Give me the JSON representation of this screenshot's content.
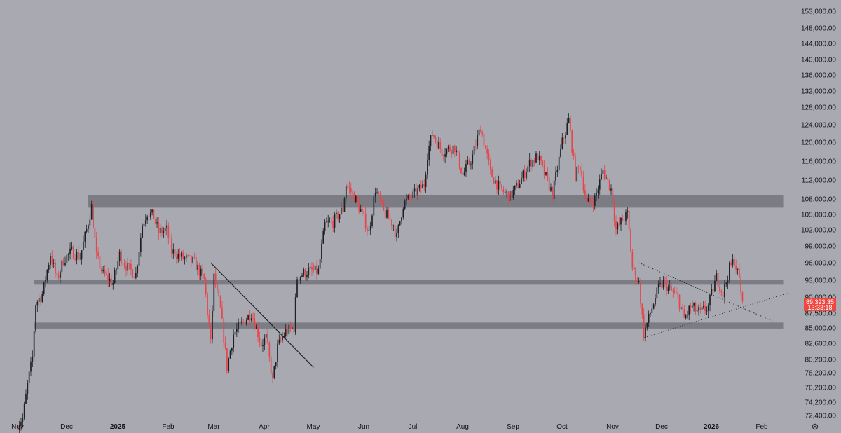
{
  "chart_data": {
    "type": "candlestick",
    "title": "",
    "xlabel": "",
    "ylabel": "",
    "x_range": [
      "2024-11-01",
      "2026-02-15"
    ],
    "y_ticks": [
      72400,
      74200,
      76200,
      78200,
      80200,
      82600,
      85000,
      87500,
      90000,
      93000,
      96000,
      99000,
      102000,
      105000,
      108000,
      112000,
      116000,
      120000,
      124000,
      128000,
      132000,
      136000,
      140000,
      144000,
      148000,
      153000
    ],
    "y_tick_labels": [
      "72,400.00",
      "74,200.00",
      "76,200.00",
      "78,200.00",
      "80,200.00",
      "82,600.00",
      "85,000.00",
      "87,500.00",
      "90,000.00",
      "93,000.00",
      "96,000.00",
      "99,000.00",
      "102,000.00",
      "105,000.00",
      "108,000.00",
      "112,000.00",
      "116,000.00",
      "120,000.00",
      "124,000.00",
      "128,000.00",
      "132,000.00",
      "136,000.00",
      "140,000.00",
      "144,000.00",
      "148,000.00",
      "153,000.00"
    ],
    "x_tick_labels": [
      {
        "date": "2024-11-01",
        "label": "Nov",
        "bold": false
      },
      {
        "date": "2024-12-01",
        "label": "Dec",
        "bold": false
      },
      {
        "date": "2025-01-01",
        "label": "2025",
        "bold": true
      },
      {
        "date": "2025-02-01",
        "label": "Feb",
        "bold": false
      },
      {
        "date": "2025-03-01",
        "label": "Mar",
        "bold": false
      },
      {
        "date": "2025-04-01",
        "label": "Apr",
        "bold": false
      },
      {
        "date": "2025-05-01",
        "label": "May",
        "bold": false
      },
      {
        "date": "2025-06-01",
        "label": "Jun",
        "bold": false
      },
      {
        "date": "2025-07-01",
        "label": "Jul",
        "bold": false
      },
      {
        "date": "2025-08-01",
        "label": "Aug",
        "bold": false
      },
      {
        "date": "2025-09-01",
        "label": "Sep",
        "bold": false
      },
      {
        "date": "2025-10-01",
        "label": "Oct",
        "bold": false
      },
      {
        "date": "2025-11-01",
        "label": "Nov",
        "bold": false
      },
      {
        "date": "2025-12-01",
        "label": "Dec",
        "bold": false
      },
      {
        "date": "2026-01-01",
        "label": "2026",
        "bold": true
      },
      {
        "date": "2026-02-01",
        "label": "Feb",
        "bold": false
      }
    ],
    "price_path": [
      {
        "date": "2024-11-01",
        "close": 71000
      },
      {
        "date": "2024-11-05",
        "close": 72000
      },
      {
        "date": "2024-11-08",
        "close": 76500
      },
      {
        "date": "2024-11-11",
        "close": 80500
      },
      {
        "date": "2024-11-13",
        "close": 89000
      },
      {
        "date": "2024-11-17",
        "close": 90500
      },
      {
        "date": "2024-11-22",
        "close": 97500
      },
      {
        "date": "2024-11-26",
        "close": 93000
      },
      {
        "date": "2024-11-30",
        "close": 96500
      },
      {
        "date": "2024-12-05",
        "close": 98000
      },
      {
        "date": "2024-12-10",
        "close": 97000
      },
      {
        "date": "2024-12-14",
        "close": 102000
      },
      {
        "date": "2024-12-17",
        "close": 106500
      },
      {
        "date": "2024-12-20",
        "close": 97000
      },
      {
        "date": "2024-12-24",
        "close": 94000
      },
      {
        "date": "2024-12-30",
        "close": 92500
      },
      {
        "date": "2025-01-03",
        "close": 97500
      },
      {
        "date": "2025-01-08",
        "close": 95000
      },
      {
        "date": "2025-01-13",
        "close": 94000
      },
      {
        "date": "2025-01-17",
        "close": 103000
      },
      {
        "date": "2025-01-20",
        "close": 105500
      },
      {
        "date": "2025-01-24",
        "close": 104500
      },
      {
        "date": "2025-01-27",
        "close": 101500
      },
      {
        "date": "2025-02-01",
        "close": 102000
      },
      {
        "date": "2025-02-04",
        "close": 98000
      },
      {
        "date": "2025-02-10",
        "close": 97000
      },
      {
        "date": "2025-02-18",
        "close": 96000
      },
      {
        "date": "2025-02-24",
        "close": 93000
      },
      {
        "date": "2025-02-28",
        "close": 82500
      },
      {
        "date": "2025-03-02",
        "close": 93500
      },
      {
        "date": "2025-03-06",
        "close": 88000
      },
      {
        "date": "2025-03-10",
        "close": 79000
      },
      {
        "date": "2025-03-14",
        "close": 84000
      },
      {
        "date": "2025-03-20",
        "close": 86000
      },
      {
        "date": "2025-03-25",
        "close": 87500
      },
      {
        "date": "2025-03-31",
        "close": 82500
      },
      {
        "date": "2025-04-03",
        "close": 83500
      },
      {
        "date": "2025-04-07",
        "close": 77000
      },
      {
        "date": "2025-04-10",
        "close": 82000
      },
      {
        "date": "2025-04-15",
        "close": 84500
      },
      {
        "date": "2025-04-20",
        "close": 85000
      },
      {
        "date": "2025-04-22",
        "close": 93500
      },
      {
        "date": "2025-04-28",
        "close": 94500
      },
      {
        "date": "2025-05-05",
        "close": 94500
      },
      {
        "date": "2025-05-09",
        "close": 103000
      },
      {
        "date": "2025-05-14",
        "close": 103500
      },
      {
        "date": "2025-05-20",
        "close": 106000
      },
      {
        "date": "2025-05-22",
        "close": 111000
      },
      {
        "date": "2025-05-27",
        "close": 108500
      },
      {
        "date": "2025-06-01",
        "close": 105000
      },
      {
        "date": "2025-06-05",
        "close": 101500
      },
      {
        "date": "2025-06-09",
        "close": 110000
      },
      {
        "date": "2025-06-14",
        "close": 105500
      },
      {
        "date": "2025-06-20",
        "close": 103000
      },
      {
        "date": "2025-06-22",
        "close": 100500
      },
      {
        "date": "2025-06-26",
        "close": 107000
      },
      {
        "date": "2025-07-03",
        "close": 109000
      },
      {
        "date": "2025-07-09",
        "close": 111000
      },
      {
        "date": "2025-07-11",
        "close": 117500
      },
      {
        "date": "2025-07-14",
        "close": 122000
      },
      {
        "date": "2025-07-20",
        "close": 118000
      },
      {
        "date": "2025-07-28",
        "close": 119000
      },
      {
        "date": "2025-08-02",
        "close": 113000
      },
      {
        "date": "2025-08-08",
        "close": 117000
      },
      {
        "date": "2025-08-13",
        "close": 123500
      },
      {
        "date": "2025-08-19",
        "close": 113500
      },
      {
        "date": "2025-08-25",
        "close": 110000
      },
      {
        "date": "2025-08-31",
        "close": 108500
      },
      {
        "date": "2025-09-05",
        "close": 111000
      },
      {
        "date": "2025-09-12",
        "close": 115500
      },
      {
        "date": "2025-09-17",
        "close": 117000
      },
      {
        "date": "2025-09-22",
        "close": 112500
      },
      {
        "date": "2025-09-26",
        "close": 109000
      },
      {
        "date": "2025-10-02",
        "close": 120000
      },
      {
        "date": "2025-10-06",
        "close": 125000
      },
      {
        "date": "2025-10-10",
        "close": 113000
      },
      {
        "date": "2025-10-13",
        "close": 115000
      },
      {
        "date": "2025-10-17",
        "close": 107000
      },
      {
        "date": "2025-10-22",
        "close": 108000
      },
      {
        "date": "2025-10-27",
        "close": 114000
      },
      {
        "date": "2025-11-01",
        "close": 110000
      },
      {
        "date": "2025-11-04",
        "close": 102000
      },
      {
        "date": "2025-11-07",
        "close": 103500
      },
      {
        "date": "2025-11-11",
        "close": 105000
      },
      {
        "date": "2025-11-14",
        "close": 95000
      },
      {
        "date": "2025-11-18",
        "close": 92500
      },
      {
        "date": "2025-11-21",
        "close": 84000
      },
      {
        "date": "2025-11-25",
        "close": 87500
      },
      {
        "date": "2025-11-30",
        "close": 91500
      },
      {
        "date": "2025-12-03",
        "close": 92500
      },
      {
        "date": "2025-12-08",
        "close": 91000
      },
      {
        "date": "2025-12-12",
        "close": 90000
      },
      {
        "date": "2025-12-16",
        "close": 86500
      },
      {
        "date": "2025-12-20",
        "close": 88500
      },
      {
        "date": "2025-12-26",
        "close": 87500
      },
      {
        "date": "2025-12-31",
        "close": 88500
      },
      {
        "date": "2026-01-05",
        "close": 93500
      },
      {
        "date": "2026-01-09",
        "close": 90500
      },
      {
        "date": "2026-01-13",
        "close": 95000
      },
      {
        "date": "2026-01-16",
        "close": 96500
      },
      {
        "date": "2026-01-19",
        "close": 93000
      },
      {
        "date": "2026-01-21",
        "close": 89323.35
      }
    ],
    "zones": [
      {
        "low": 106300,
        "high": 108800,
        "start": "2024-12-15",
        "end": "2026-02-15"
      },
      {
        "low": 92200,
        "high": 93100,
        "start": "2024-11-12",
        "end": "2026-02-15"
      },
      {
        "low": 84900,
        "high": 85900,
        "start": "2024-11-12",
        "end": "2026-02-15"
      }
    ],
    "trendlines": [
      {
        "style": "solid",
        "from": {
          "date": "2025-02-28",
          "price": 96000
        },
        "to": {
          "date": "2025-05-02",
          "price": 79000
        }
      },
      {
        "style": "dotted",
        "from": {
          "date": "2025-11-18",
          "price": 96000
        },
        "to": {
          "date": "2026-02-08",
          "price": 86200
        }
      },
      {
        "style": "dotted",
        "from": {
          "date": "2025-11-20",
          "price": 83400
        },
        "to": {
          "date": "2026-02-18",
          "price": 90700
        }
      }
    ],
    "last_price": {
      "value": "89,323.35",
      "countdown": "13:33:18"
    },
    "colors": {
      "up": "#1f2024",
      "down": "#e9444a",
      "label_bg": "#ef4640",
      "zone": "#7c7d84",
      "background": "#a8a9b1"
    },
    "grid": false,
    "settings_icon": "gear-icon"
  }
}
